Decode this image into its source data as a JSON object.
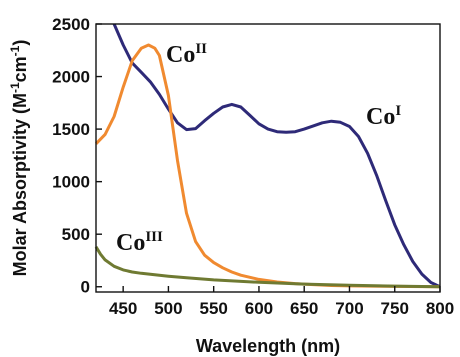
{
  "chart_data": {
    "type": "line",
    "xlabel": "Wavelength (nm)",
    "ylabel_main": "Molar Absorptivity (M",
    "ylabel_sup1": "-1",
    "ylabel_mid": "cm",
    "ylabel_sup2": "-1",
    "ylabel_end": ")",
    "xlim": [
      420,
      800
    ],
    "ylim": [
      -50,
      2500
    ],
    "xticks": [
      450,
      500,
      550,
      600,
      650,
      700,
      750,
      800
    ],
    "yticks": [
      0,
      500,
      1000,
      1500,
      2000,
      2500
    ],
    "grid": false,
    "series": [
      {
        "label_base": "Co",
        "label_sup": "I",
        "color": "#2e2a78",
        "points": [
          [
            440,
            2500
          ],
          [
            450,
            2300
          ],
          [
            460,
            2130
          ],
          [
            470,
            2040
          ],
          [
            480,
            1950
          ],
          [
            490,
            1830
          ],
          [
            500,
            1690
          ],
          [
            510,
            1560
          ],
          [
            520,
            1495
          ],
          [
            530,
            1505
          ],
          [
            540,
            1580
          ],
          [
            550,
            1650
          ],
          [
            560,
            1710
          ],
          [
            570,
            1735
          ],
          [
            580,
            1710
          ],
          [
            590,
            1630
          ],
          [
            600,
            1550
          ],
          [
            610,
            1500
          ],
          [
            620,
            1475
          ],
          [
            630,
            1470
          ],
          [
            640,
            1475
          ],
          [
            650,
            1500
          ],
          [
            660,
            1530
          ],
          [
            670,
            1560
          ],
          [
            680,
            1575
          ],
          [
            690,
            1565
          ],
          [
            700,
            1525
          ],
          [
            710,
            1430
          ],
          [
            720,
            1270
          ],
          [
            730,
            1060
          ],
          [
            740,
            820
          ],
          [
            750,
            590
          ],
          [
            760,
            400
          ],
          [
            770,
            240
          ],
          [
            780,
            120
          ],
          [
            790,
            40
          ],
          [
            800,
            0
          ]
        ]
      },
      {
        "label_base": "Co",
        "label_sup": "II",
        "color": "#f08a30",
        "points": [
          [
            420,
            1360
          ],
          [
            430,
            1450
          ],
          [
            440,
            1620
          ],
          [
            450,
            1900
          ],
          [
            460,
            2150
          ],
          [
            470,
            2270
          ],
          [
            478,
            2300
          ],
          [
            485,
            2270
          ],
          [
            490,
            2200
          ],
          [
            500,
            1820
          ],
          [
            510,
            1200
          ],
          [
            520,
            700
          ],
          [
            530,
            430
          ],
          [
            540,
            300
          ],
          [
            550,
            230
          ],
          [
            560,
            180
          ],
          [
            570,
            140
          ],
          [
            580,
            110
          ],
          [
            590,
            90
          ],
          [
            600,
            70
          ],
          [
            620,
            45
          ],
          [
            640,
            30
          ],
          [
            660,
            20
          ],
          [
            680,
            12
          ],
          [
            700,
            8
          ],
          [
            750,
            3
          ],
          [
            800,
            0
          ]
        ]
      },
      {
        "label_base": "Co",
        "label_sup": "III",
        "color": "#6f7a32",
        "points": [
          [
            420,
            380
          ],
          [
            425,
            310
          ],
          [
            430,
            255
          ],
          [
            440,
            195
          ],
          [
            450,
            160
          ],
          [
            460,
            140
          ],
          [
            470,
            128
          ],
          [
            480,
            118
          ],
          [
            500,
            100
          ],
          [
            520,
            85
          ],
          [
            550,
            65
          ],
          [
            600,
            42
          ],
          [
            650,
            25
          ],
          [
            700,
            14
          ],
          [
            750,
            6
          ],
          [
            800,
            0
          ]
        ]
      }
    ]
  }
}
